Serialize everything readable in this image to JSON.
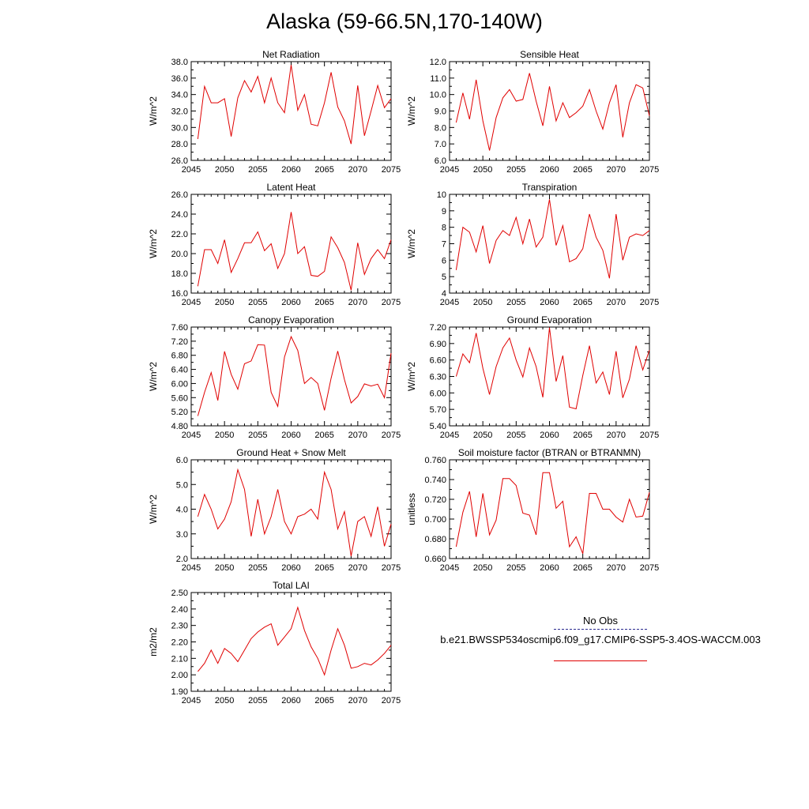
{
  "page": {
    "title": "Alaska (59-66.5N,170-140W)"
  },
  "legend": {
    "obs_label": "No Obs",
    "obs_color": "#2b2b8f",
    "model_label": "b.e21.BWSSP534oscmip6.f09_g17.CMIP6-SSP5-3.4OS-WACCM.003",
    "model_color": "#e00000"
  },
  "colors": {
    "series": "#e00000",
    "axis": "#000000"
  },
  "chart_data": [
    {
      "type": "line",
      "title": "Net Radiation",
      "ylabel": "W/m^2",
      "xlim": [
        2045,
        2075
      ],
      "ylim": [
        26.0,
        38.0
      ],
      "xticks": [
        2045,
        2050,
        2055,
        2060,
        2065,
        2070,
        2075
      ],
      "xtick_labels": [
        "2045",
        "2050",
        "2055",
        "2060",
        "2065",
        "2070",
        "2075"
      ],
      "yticks": [
        26.0,
        28.0,
        30.0,
        32.0,
        34.0,
        36.0,
        38.0
      ],
      "ytick_labels": [
        "26.0",
        "28.0",
        "30.0",
        "32.0",
        "34.0",
        "36.0",
        "38.0"
      ],
      "x": [
        2046,
        2047,
        2048,
        2049,
        2050,
        2051,
        2052,
        2053,
        2054,
        2055,
        2056,
        2057,
        2058,
        2059,
        2060,
        2061,
        2062,
        2063,
        2064,
        2065,
        2066,
        2067,
        2068,
        2069,
        2070,
        2071,
        2072,
        2073,
        2074,
        2075
      ],
      "values": [
        28.6,
        35.0,
        33.0,
        33.0,
        33.5,
        28.9,
        33.6,
        35.7,
        34.3,
        36.2,
        33.0,
        36.0,
        33.0,
        31.8,
        37.6,
        32.1,
        34.0,
        30.4,
        30.2,
        33.0,
        36.7,
        32.5,
        30.8,
        28.0,
        35.1,
        29.0,
        32.0,
        35.1,
        32.4,
        33.5
      ]
    },
    {
      "type": "line",
      "title": "Sensible Heat",
      "ylabel": "W/m^2",
      "xlim": [
        2045,
        2075
      ],
      "ylim": [
        6.0,
        12.0
      ],
      "xticks": [
        2045,
        2050,
        2055,
        2060,
        2065,
        2070,
        2075
      ],
      "xtick_labels": [
        "2045",
        "2050",
        "2055",
        "2060",
        "2065",
        "2070",
        "2075"
      ],
      "yticks": [
        6.0,
        7.0,
        8.0,
        9.0,
        10.0,
        11.0,
        12.0
      ],
      "ytick_labels": [
        "6.0",
        "7.0",
        "8.0",
        "9.0",
        "10.0",
        "11.0",
        "12.0"
      ],
      "x": [
        2046,
        2047,
        2048,
        2049,
        2050,
        2051,
        2052,
        2053,
        2054,
        2055,
        2056,
        2057,
        2058,
        2059,
        2060,
        2061,
        2062,
        2063,
        2064,
        2065,
        2066,
        2067,
        2068,
        2069,
        2070,
        2071,
        2072,
        2073,
        2074,
        2075
      ],
      "values": [
        8.3,
        10.1,
        8.5,
        10.9,
        8.4,
        6.6,
        8.6,
        9.8,
        10.3,
        9.6,
        9.7,
        11.3,
        9.6,
        8.1,
        10.5,
        8.4,
        9.5,
        8.6,
        8.9,
        9.3,
        10.3,
        9.0,
        7.9,
        9.5,
        10.6,
        7.4,
        9.5,
        10.6,
        10.4,
        8.7
      ]
    },
    {
      "type": "line",
      "title": "Latent Heat",
      "ylabel": "W/m^2",
      "xlim": [
        2045,
        2075
      ],
      "ylim": [
        16.0,
        26.0
      ],
      "xticks": [
        2045,
        2050,
        2055,
        2060,
        2065,
        2070,
        2075
      ],
      "xtick_labels": [
        "2045",
        "2050",
        "2055",
        "2060",
        "2065",
        "2070",
        "2075"
      ],
      "yticks": [
        16.0,
        18.0,
        20.0,
        22.0,
        24.0,
        26.0
      ],
      "ytick_labels": [
        "16.0",
        "18.0",
        "20.0",
        "22.0",
        "24.0",
        "26.0"
      ],
      "x": [
        2046,
        2047,
        2048,
        2049,
        2050,
        2051,
        2052,
        2053,
        2054,
        2055,
        2056,
        2057,
        2058,
        2059,
        2060,
        2061,
        2062,
        2063,
        2064,
        2065,
        2066,
        2067,
        2068,
        2069,
        2070,
        2071,
        2072,
        2073,
        2074,
        2075
      ],
      "values": [
        16.7,
        20.4,
        20.4,
        19.0,
        21.4,
        18.1,
        19.5,
        21.1,
        21.1,
        22.2,
        20.3,
        21.0,
        18.5,
        20.0,
        24.2,
        20.0,
        20.7,
        17.8,
        17.7,
        18.2,
        21.7,
        20.6,
        19.1,
        16.3,
        21.1,
        17.9,
        19.5,
        20.4,
        19.5,
        21.4
      ]
    },
    {
      "type": "line",
      "title": "Transpiration",
      "ylabel": "W/m^2",
      "xlim": [
        2045,
        2075
      ],
      "ylim": [
        4,
        10
      ],
      "xticks": [
        2045,
        2050,
        2055,
        2060,
        2065,
        2070,
        2075
      ],
      "xtick_labels": [
        "2045",
        "2050",
        "2055",
        "2060",
        "2065",
        "2070",
        "2075"
      ],
      "yticks": [
        4,
        5,
        6,
        7,
        8,
        9,
        10
      ],
      "ytick_labels": [
        "4",
        "5",
        "6",
        "7",
        "8",
        "9",
        "10"
      ],
      "x": [
        2046,
        2047,
        2048,
        2049,
        2050,
        2051,
        2052,
        2053,
        2054,
        2055,
        2056,
        2057,
        2058,
        2059,
        2060,
        2061,
        2062,
        2063,
        2064,
        2065,
        2066,
        2067,
        2068,
        2069,
        2070,
        2071,
        2072,
        2073,
        2074,
        2075
      ],
      "values": [
        5.4,
        8.0,
        7.7,
        6.5,
        8.1,
        5.8,
        7.2,
        7.8,
        7.5,
        8.6,
        7.0,
        8.5,
        6.8,
        7.4,
        9.7,
        6.9,
        8.1,
        5.9,
        6.1,
        6.7,
        8.8,
        7.4,
        6.6,
        4.9,
        8.8,
        6.0,
        7.4,
        7.6,
        7.5,
        7.8
      ]
    },
    {
      "type": "line",
      "title": "Canopy Evaporation",
      "ylabel": "W/m^2",
      "xlim": [
        2045,
        2075
      ],
      "ylim": [
        4.8,
        7.6
      ],
      "xticks": [
        2045,
        2050,
        2055,
        2060,
        2065,
        2070,
        2075
      ],
      "xtick_labels": [
        "2045",
        "2050",
        "2055",
        "2060",
        "2065",
        "2070",
        "2075"
      ],
      "yticks": [
        4.8,
        5.2,
        5.6,
        6.0,
        6.4,
        6.8,
        7.2,
        7.6
      ],
      "ytick_labels": [
        "4.80",
        "5.20",
        "5.60",
        "6.00",
        "6.40",
        "6.80",
        "7.20",
        "7.60"
      ],
      "x": [
        2046,
        2047,
        2048,
        2049,
        2050,
        2051,
        2052,
        2053,
        2054,
        2055,
        2056,
        2057,
        2058,
        2059,
        2060,
        2061,
        2062,
        2063,
        2064,
        2065,
        2066,
        2067,
        2068,
        2069,
        2070,
        2071,
        2072,
        2073,
        2074,
        2075
      ],
      "values": [
        5.08,
        5.75,
        6.31,
        5.52,
        6.91,
        6.26,
        5.84,
        6.56,
        6.64,
        7.1,
        7.09,
        5.75,
        5.35,
        6.75,
        7.33,
        6.94,
        6.0,
        6.17,
        6.0,
        5.24,
        6.15,
        6.92,
        6.11,
        5.45,
        5.63,
        5.99,
        5.93,
        5.98,
        5.6,
        6.86
      ]
    },
    {
      "type": "line",
      "title": "Ground Evaporation",
      "ylabel": "W/m^2",
      "xlim": [
        2045,
        2075
      ],
      "ylim": [
        5.4,
        7.2
      ],
      "xticks": [
        2045,
        2050,
        2055,
        2060,
        2065,
        2070,
        2075
      ],
      "xtick_labels": [
        "2045",
        "2050",
        "2055",
        "2060",
        "2065",
        "2070",
        "2075"
      ],
      "yticks": [
        5.4,
        5.7,
        6.0,
        6.3,
        6.6,
        6.9,
        7.2
      ],
      "ytick_labels": [
        "5.40",
        "5.70",
        "6.00",
        "6.30",
        "6.60",
        "6.90",
        "7.20"
      ],
      "x": [
        2046,
        2047,
        2048,
        2049,
        2050,
        2051,
        2052,
        2053,
        2054,
        2055,
        2056,
        2057,
        2058,
        2059,
        2060,
        2061,
        2062,
        2063,
        2064,
        2065,
        2066,
        2067,
        2068,
        2069,
        2070,
        2071,
        2072,
        2073,
        2074,
        2075
      ],
      "values": [
        6.3,
        6.71,
        6.55,
        7.09,
        6.45,
        5.97,
        6.48,
        6.82,
        7.0,
        6.6,
        6.29,
        6.82,
        6.48,
        5.92,
        7.19,
        6.21,
        6.68,
        5.74,
        5.71,
        6.32,
        6.86,
        6.18,
        6.38,
        5.97,
        6.76,
        5.91,
        6.25,
        6.86,
        6.42,
        6.78
      ]
    },
    {
      "type": "line",
      "title": "Ground Heat + Snow Melt",
      "ylabel": "W/m^2",
      "xlim": [
        2045,
        2075
      ],
      "ylim": [
        2.0,
        6.0
      ],
      "xticks": [
        2045,
        2050,
        2055,
        2060,
        2065,
        2070,
        2075
      ],
      "xtick_labels": [
        "2045",
        "2050",
        "2055",
        "2060",
        "2065",
        "2070",
        "2075"
      ],
      "yticks": [
        2.0,
        3.0,
        4.0,
        5.0,
        6.0
      ],
      "ytick_labels": [
        "2.0",
        "3.0",
        "4.0",
        "5.0",
        "6.0"
      ],
      "x": [
        2046,
        2047,
        2048,
        2049,
        2050,
        2051,
        2052,
        2053,
        2054,
        2055,
        2056,
        2057,
        2058,
        2059,
        2060,
        2061,
        2062,
        2063,
        2064,
        2065,
        2066,
        2067,
        2068,
        2069,
        2070,
        2071,
        2072,
        2073,
        2074,
        2075
      ],
      "values": [
        3.7,
        4.6,
        4.0,
        3.2,
        3.6,
        4.3,
        5.6,
        4.8,
        2.9,
        4.4,
        3.0,
        3.7,
        4.8,
        3.5,
        3.0,
        3.7,
        3.8,
        4.0,
        3.6,
        5.5,
        4.8,
        3.2,
        3.9,
        2.1,
        3.5,
        3.7,
        2.9,
        4.1,
        2.5,
        3.4
      ]
    },
    {
      "type": "line",
      "title": "Soil moisture factor (BTRAN or BTRANMN)",
      "ylabel": "unitless",
      "xlim": [
        2045,
        2075
      ],
      "ylim": [
        0.66,
        0.76
      ],
      "xticks": [
        2045,
        2050,
        2055,
        2060,
        2065,
        2070,
        2075
      ],
      "xtick_labels": [
        "2045",
        "2050",
        "2055",
        "2060",
        "2065",
        "2070",
        "2075"
      ],
      "yticks": [
        0.66,
        0.68,
        0.7,
        0.72,
        0.74,
        0.76
      ],
      "ytick_labels": [
        "0.660",
        "0.680",
        "0.700",
        "0.720",
        "0.740",
        "0.760"
      ],
      "x": [
        2046,
        2047,
        2048,
        2049,
        2050,
        2051,
        2052,
        2053,
        2054,
        2055,
        2056,
        2057,
        2058,
        2059,
        2060,
        2061,
        2062,
        2063,
        2064,
        2065,
        2066,
        2067,
        2068,
        2069,
        2070,
        2071,
        2072,
        2073,
        2074,
        2075
      ],
      "values": [
        0.672,
        0.707,
        0.728,
        0.682,
        0.726,
        0.684,
        0.699,
        0.741,
        0.741,
        0.734,
        0.706,
        0.704,
        0.684,
        0.747,
        0.747,
        0.711,
        0.718,
        0.672,
        0.682,
        0.665,
        0.726,
        0.726,
        0.71,
        0.71,
        0.702,
        0.697,
        0.72,
        0.702,
        0.703,
        0.727
      ]
    },
    {
      "type": "line",
      "title": "Total LAI",
      "ylabel": "m2/m2",
      "xlim": [
        2045,
        2075
      ],
      "ylim": [
        1.9,
        2.5
      ],
      "xticks": [
        2045,
        2050,
        2055,
        2060,
        2065,
        2070,
        2075
      ],
      "xtick_labels": [
        "2045",
        "2050",
        "2055",
        "2060",
        "2065",
        "2070",
        "2075"
      ],
      "yticks": [
        1.9,
        2.0,
        2.1,
        2.2,
        2.3,
        2.4,
        2.5
      ],
      "ytick_labels": [
        "1.90",
        "2.00",
        "2.10",
        "2.20",
        "2.30",
        "2.40",
        "2.50"
      ],
      "x": [
        2046,
        2047,
        2048,
        2049,
        2050,
        2051,
        2052,
        2053,
        2054,
        2055,
        2056,
        2057,
        2058,
        2059,
        2060,
        2061,
        2062,
        2063,
        2064,
        2065,
        2066,
        2067,
        2068,
        2069,
        2070,
        2071,
        2072,
        2073,
        2074,
        2075
      ],
      "values": [
        2.02,
        2.07,
        2.15,
        2.07,
        2.16,
        2.13,
        2.08,
        2.15,
        2.22,
        2.26,
        2.29,
        2.31,
        2.18,
        2.23,
        2.28,
        2.41,
        2.27,
        2.17,
        2.1,
        2.0,
        2.15,
        2.28,
        2.18,
        2.04,
        2.05,
        2.07,
        2.06,
        2.09,
        2.13,
        2.18
      ]
    }
  ]
}
